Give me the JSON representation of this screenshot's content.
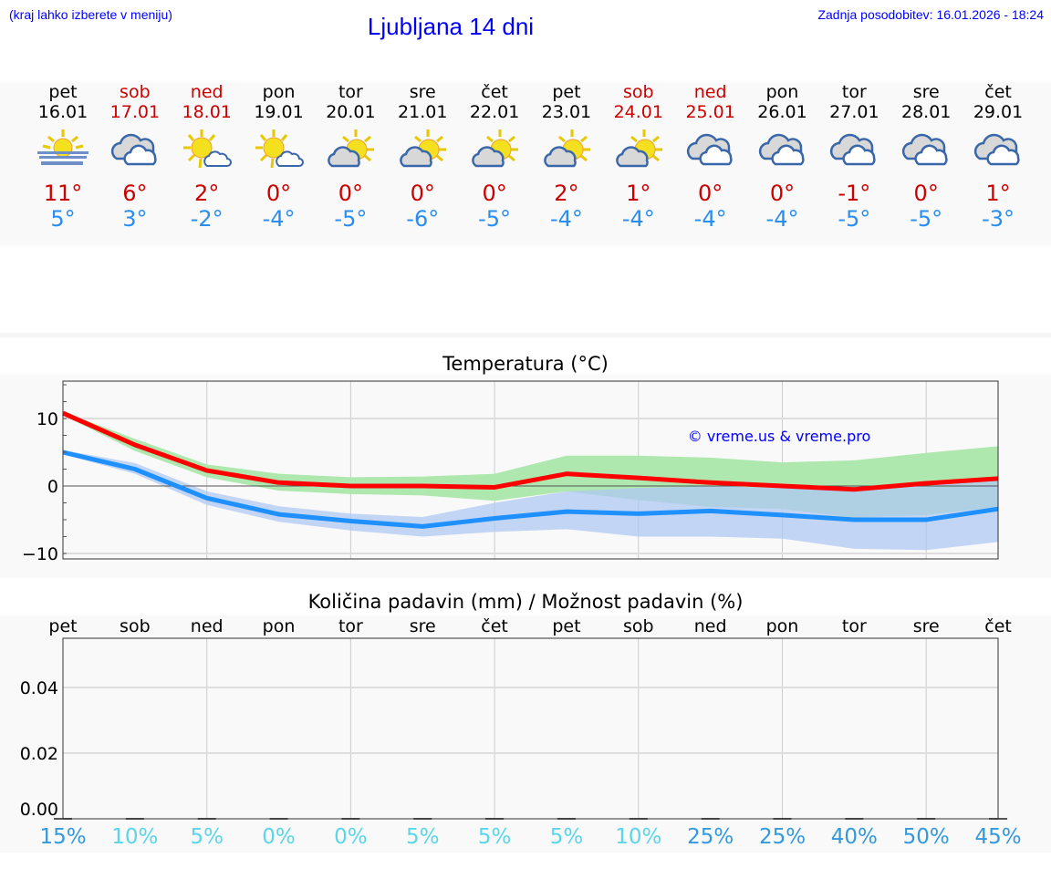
{
  "header": {
    "hint": "(kraj lahko izberete v meniju)",
    "title": "Ljubljana 14 dni",
    "updated": "Zadnja posodobitev: 16.01.2026 - 18:24"
  },
  "days": [
    {
      "name": "pet",
      "date": "16.01",
      "weekend": false,
      "icon": "fog-sun-icon",
      "max": "11°",
      "min": "5°"
    },
    {
      "name": "sob",
      "date": "17.01",
      "weekend": true,
      "icon": "cloudy-icon",
      "max": "6°",
      "min": "3°"
    },
    {
      "name": "ned",
      "date": "18.01",
      "weekend": true,
      "icon": "sun-small-cloud-icon",
      "max": "2°",
      "min": "-2°"
    },
    {
      "name": "pon",
      "date": "19.01",
      "weekend": false,
      "icon": "sun-small-cloud-icon",
      "max": "0°",
      "min": "-4°"
    },
    {
      "name": "tor",
      "date": "20.01",
      "weekend": false,
      "icon": "partly-cloudy-icon",
      "max": "0°",
      "min": "-5°"
    },
    {
      "name": "sre",
      "date": "21.01",
      "weekend": false,
      "icon": "partly-cloudy-icon",
      "max": "0°",
      "min": "-6°"
    },
    {
      "name": "čet",
      "date": "22.01",
      "weekend": false,
      "icon": "partly-cloudy-icon",
      "max": "0°",
      "min": "-5°"
    },
    {
      "name": "pet",
      "date": "23.01",
      "weekend": false,
      "icon": "partly-cloudy-icon",
      "max": "2°",
      "min": "-4°"
    },
    {
      "name": "sob",
      "date": "24.01",
      "weekend": true,
      "icon": "partly-cloudy-icon",
      "max": "1°",
      "min": "-4°"
    },
    {
      "name": "ned",
      "date": "25.01",
      "weekend": true,
      "icon": "cloudy-icon",
      "max": "0°",
      "min": "-4°"
    },
    {
      "name": "pon",
      "date": "26.01",
      "weekend": false,
      "icon": "cloudy-icon",
      "max": "0°",
      "min": "-4°"
    },
    {
      "name": "tor",
      "date": "27.01",
      "weekend": false,
      "icon": "cloudy-icon",
      "max": "-1°",
      "min": "-5°"
    },
    {
      "name": "sre",
      "date": "28.01",
      "weekend": false,
      "icon": "cloudy-icon",
      "max": "0°",
      "min": "-5°"
    },
    {
      "name": "čet",
      "date": "29.01",
      "weekend": false,
      "icon": "cloudy-icon",
      "max": "1°",
      "min": "-3°"
    }
  ],
  "colors": {
    "max": "#cc0000",
    "min": "#2a8ef0",
    "max_line": "#ff0000",
    "min_line": "#1e90ff",
    "max_band": "#aee8ae",
    "min_band": "#afc8f3",
    "overlap": "#7dc5a8",
    "pct_high": "#3399dd",
    "pct_low": "#5ad6ea"
  },
  "chart_data": [
    {
      "type": "line",
      "title": "Temperatura (°C)",
      "watermark": "© vreme.us & vreme.pro",
      "ylim": [
        -10.8,
        15.5
      ],
      "yticks": [
        10,
        0,
        -10
      ],
      "ytick_labels": [
        "10",
        "0",
        "−10"
      ],
      "grid": true,
      "x": [
        "16.01",
        "17.01",
        "18.01",
        "19.01",
        "20.01",
        "21.01",
        "22.01",
        "23.01",
        "24.01",
        "25.01",
        "26.01",
        "27.01",
        "28.01",
        "29.01"
      ],
      "series": [
        {
          "role": "max",
          "values": [
            10.8,
            6.1,
            2.3,
            0.5,
            0,
            0,
            -0.2,
            1.8,
            1.2,
            0.5,
            0,
            -0.5,
            0.4,
            1.1
          ],
          "band_upper": [
            11,
            7,
            3.2,
            1.8,
            1.3,
            1.4,
            1.8,
            4.5,
            4.5,
            4.2,
            3.5,
            3.8,
            4.9,
            5.9
          ],
          "band_lower": [
            10.5,
            5.2,
            1.3,
            -0.7,
            -1.2,
            -1.4,
            -2.2,
            -0.8,
            -2.1,
            -3.1,
            -3.4,
            -4.7,
            -4.3,
            -3.1
          ]
        },
        {
          "role": "min",
          "values": [
            5,
            2.5,
            -1.8,
            -4.2,
            -5.2,
            -6,
            -4.8,
            -3.8,
            -4.1,
            -3.7,
            -4.3,
            -5,
            -5,
            -3.4
          ],
          "band_upper": [
            5.3,
            3.4,
            -0.8,
            -3,
            -4.1,
            -4.6,
            -2.5,
            -0.8,
            -0.3,
            0,
            -0.3,
            -0.1,
            0,
            1
          ],
          "band_lower": [
            4.7,
            1.8,
            -2.8,
            -5.3,
            -6.6,
            -7.5,
            -6.8,
            -6.4,
            -7.5,
            -7.5,
            -7.8,
            -9.3,
            -9.5,
            -8.3
          ]
        }
      ]
    },
    {
      "type": "bar",
      "title": "Količina padavin (mm) / Možnost padavin (%)",
      "ylim": [
        0,
        0.055
      ],
      "yticks": [
        0.04,
        0.02,
        0.0
      ],
      "ytick_labels": [
        "0.04",
        "0.02",
        "0.00"
      ],
      "grid": true,
      "categories": [
        "pet",
        "sob",
        "ned",
        "pon",
        "tor",
        "sre",
        "čet",
        "pet",
        "sob",
        "ned",
        "pon",
        "tor",
        "sre",
        "čet"
      ],
      "values": [
        0,
        0,
        0,
        0,
        0,
        0,
        0,
        0,
        0,
        0,
        0,
        0,
        0,
        0
      ],
      "probability": [
        "15%",
        "10%",
        "5%",
        "0%",
        "0%",
        "5%",
        "5%",
        "5%",
        "10%",
        "25%",
        "25%",
        "40%",
        "50%",
        "45%"
      ]
    }
  ]
}
